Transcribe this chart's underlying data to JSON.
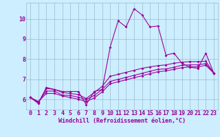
{
  "xlabel": "Windchill (Refroidissement éolien,°C)",
  "ylabel": "",
  "bg_color": "#cceeff",
  "line_color": "#990099",
  "grid_color": "#99bbcc",
  "x_data": [
    0,
    1,
    2,
    3,
    4,
    5,
    6,
    7,
    8,
    9,
    10,
    11,
    12,
    13,
    14,
    15,
    16,
    17,
    18,
    19,
    20,
    21,
    22,
    23
  ],
  "series1": [
    6.1,
    5.8,
    6.6,
    6.5,
    6.4,
    6.4,
    6.4,
    5.75,
    6.4,
    6.5,
    8.6,
    9.9,
    9.6,
    10.5,
    10.2,
    9.6,
    9.65,
    8.2,
    8.3,
    7.8,
    7.6,
    7.55,
    8.3,
    7.3
  ],
  "series2": [
    6.1,
    5.85,
    6.55,
    6.5,
    6.35,
    6.3,
    6.25,
    6.05,
    6.35,
    6.65,
    7.15,
    7.25,
    7.35,
    7.45,
    7.55,
    7.62,
    7.68,
    7.72,
    7.8,
    7.85,
    7.88,
    7.88,
    7.9,
    7.3
  ],
  "series3": [
    6.1,
    5.88,
    6.42,
    6.42,
    6.22,
    6.2,
    6.12,
    6.0,
    6.2,
    6.5,
    6.9,
    7.0,
    7.1,
    7.2,
    7.3,
    7.4,
    7.5,
    7.52,
    7.6,
    7.7,
    7.72,
    7.72,
    7.78,
    7.3
  ],
  "series4": [
    6.1,
    5.9,
    6.3,
    6.3,
    6.18,
    6.1,
    6.02,
    5.9,
    6.08,
    6.38,
    6.78,
    6.88,
    6.98,
    7.08,
    7.18,
    7.28,
    7.38,
    7.42,
    7.5,
    7.58,
    7.62,
    7.62,
    7.7,
    7.3
  ],
  "xlim": [
    -0.5,
    23.5
  ],
  "ylim": [
    5.5,
    10.8
  ],
  "yticks": [
    6,
    7,
    8,
    9,
    10
  ],
  "xticks": [
    0,
    1,
    2,
    3,
    4,
    5,
    6,
    7,
    8,
    9,
    10,
    11,
    12,
    13,
    14,
    15,
    16,
    17,
    18,
    19,
    20,
    21,
    22,
    23
  ],
  "tick_fontsize": 6,
  "xlabel_fontsize": 6
}
